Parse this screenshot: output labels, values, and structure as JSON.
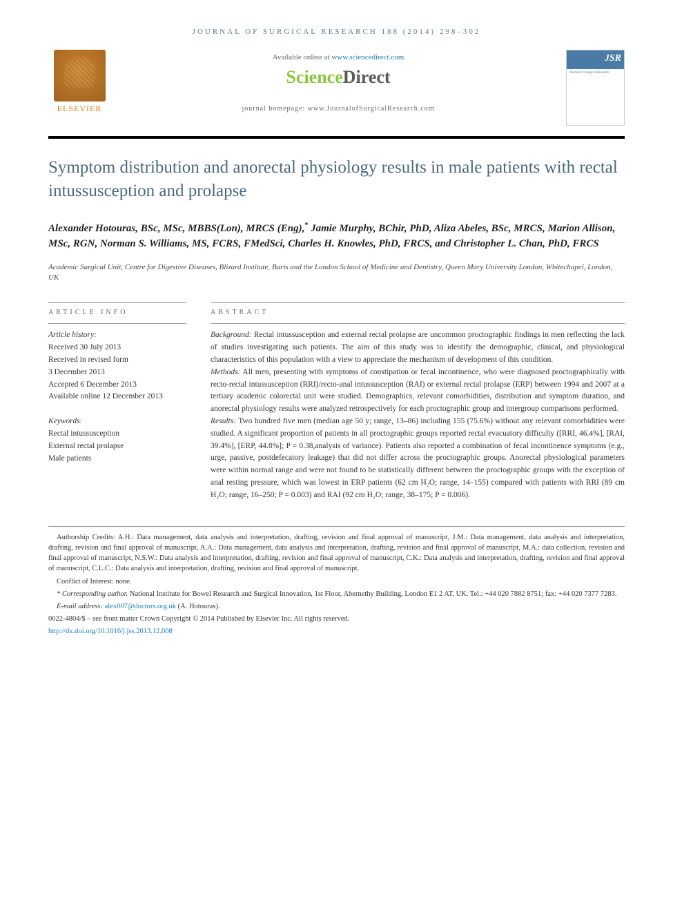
{
  "journal_header": "JOURNAL OF SURGICAL RESEARCH 188 (2014) 298–302",
  "masthead": {
    "elsevier_label": "ELSEVIER",
    "available_prefix": "Available online at ",
    "available_link": "www.sciencedirect.com",
    "sd_sci": "Science",
    "sd_direct": "Direct",
    "homepage_prefix": "journal homepage: ",
    "homepage_url": "www.JournalofSurgicalResearch.com",
    "cover_title": "JSR",
    "cover_sub": "Journal of Surgical Research"
  },
  "title": "Symptom distribution and anorectal physiology results in male patients with rectal intussusception and prolapse",
  "authors_html": "Alexander Hotouras, BSc, MSc, MBBS(Lon), MRCS (Eng),* Jamie Murphy, BChir, PhD, Aliza Abeles, BSc, MRCS, Marion Allison, MSc, RGN, Norman S. Williams, MS, FCRS, FMedSci, Charles H. Knowles, PhD, FRCS, and Christopher L. Chan, PhD, FRCS",
  "affiliation": "Academic Surgical Unit, Centre for Digestive Diseases, Blizard Institute, Barts and the London School of Medicine and Dentistry, Queen Mary University London, Whitechapel, London, UK",
  "article_info": {
    "label": "ARTICLE INFO",
    "history_heading": "Article history:",
    "received": "Received 30 July 2013",
    "revised_1": "Received in revised form",
    "revised_2": "3 December 2013",
    "accepted": "Accepted 6 December 2013",
    "online": "Available online 12 December 2013",
    "keywords_heading": "Keywords:",
    "kw1": "Rectal intussusception",
    "kw2": "External rectal prolapse",
    "kw3": "Male patients"
  },
  "abstract": {
    "label": "ABSTRACT",
    "background_label": "Background:",
    "background": " Rectal intussusception and external rectal prolapse are uncommon proctographic findings in men reflecting the lack of studies investigating such patients. The aim of this study was to identify the demographic, clinical, and physiological characteristics of this population with a view to appreciate the mechanism of development of this condition.",
    "methods_label": "Methods:",
    "methods": " All men, presenting with symptoms of constipation or fecal incontinence, who were diagnosed proctographically with recto-rectal intussusception (RRI)/recto-anal intussusception (RAI) or external rectal prolapse (ERP) between 1994 and 2007 at a tertiary academic colorectal unit were studied. Demographics, relevant comorbidities, distribution and symptom duration, and anorectal physiology results were analyzed retrospectively for each proctographic group and intergroup comparisons performed.",
    "results_label": "Results:",
    "results": " Two hundred five men (median age 50 y; range, 13–86) including 155 (75.6%) without any relevant comorbidities were studied. A significant proportion of patients in all proctographic groups reported rectal evacuatory difficulty ([RRI, 46.4%], [RAI, 39.4%], [ERP, 44.8%]; P = 0.38,analysis of variance). Patients also reported a combination of fecal incontinence symptoms (e.g., urge, passive, postdefecatory leakage) that did not differ across the proctographic groups. Anorectal physiological parameters were within normal range and were not found to be statistically different between the proctographic groups with the exception of anal resting pressure, which was lowest in ERP patients (62 cm H₂O; range, 14–155) compared with patients with RRI (89 cm H₂O; range, 16–250; P = 0.003) and RAI (92 cm H₂O; range, 38–175; P = 0.006)."
  },
  "footnotes": {
    "authorship": "Authorship Credits: A.H.: Data management, data analysis and interpretation, drafting, revision and final approval of manuscript, J.M.: Data management, data analysis and interpretation, drafting, revision and final approval of manuscript, A.A.: Data management, data analysis and interpretation, drafting, revision and final approval of manuscript, M.A.: data collection, revision and final approval of manuscript, N.S.W.: Data analysis and interpretation, drafting, revision and final approval of manuscript, C.K.: Data analysis and interpretation, drafting, revision and final approval of manuscript, C.L.C.: Data analysis and interpretation, drafting, revision and final approval of manuscript.",
    "conflict": "Conflict of Interest: none.",
    "corr_label": "* Corresponding author.",
    "corr_text": " National Institute for Bowel Research and Surgical Innovation, 1st Floor, Abernethy Building, London E1 2 AT, UK. Tel.: +44 020 7882 8751; fax: +44 020 7377 7283.",
    "email_label": "E-mail address: ",
    "email": "alex007@doctors.org.uk",
    "email_suffix": " (A. Hotouras).",
    "copyright": "0022-4804/$ – see front matter Crown Copyright © 2014 Published by Elsevier Inc. All rights reserved.",
    "doi": "http://dx.doi.org/10.1016/j.jss.2013.12.008"
  },
  "colors": {
    "header_text": "#5a7a8a",
    "title_text": "#4a6a7a",
    "link": "#1a7bb9",
    "sd_green": "#8cc63f",
    "elsevier_orange": "#e67817"
  }
}
